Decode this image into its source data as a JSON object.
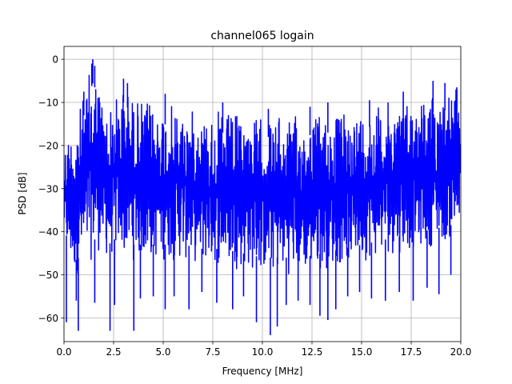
{
  "chart_data": {
    "type": "line",
    "title": "channel065 logain",
    "xlabel": "Frequency [MHz]",
    "ylabel": "PSD [dB]",
    "xlim": [
      0.0,
      20.0
    ],
    "ylim": [
      -65.5,
      3.0
    ],
    "x_ticks": [
      0.0,
      2.5,
      5.0,
      7.5,
      10.0,
      12.5,
      15.0,
      17.5,
      20.0
    ],
    "x_tick_labels": [
      "0.0",
      "2.5",
      "5.0",
      "7.5",
      "10.0",
      "12.5",
      "15.0",
      "17.5",
      "20.0"
    ],
    "y_ticks": [
      0,
      -10,
      -20,
      -30,
      -40,
      -50,
      -60
    ],
    "y_tick_labels": [
      "0",
      "−10",
      "−20",
      "−30",
      "−40",
      "−50",
      "−60"
    ],
    "grid": true,
    "legend": "none",
    "series": [
      {
        "color": "#0000ff",
        "envelope_x": [
          0.0,
          0.25,
          0.5,
          0.75,
          1.0,
          1.25,
          1.5,
          1.75,
          2.0,
          2.25,
          2.5,
          2.75,
          3.0,
          3.5,
          4.0,
          4.5,
          5.0,
          6.0,
          7.0,
          8.0,
          9.0,
          10.0,
          11.0,
          12.0,
          13.0,
          14.0,
          15.0,
          16.0,
          17.0,
          18.0,
          19.0,
          20.0
        ],
        "upper_db": [
          -19,
          -16,
          -14,
          -11,
          -8,
          -3,
          0,
          -4,
          -9,
          -11,
          -9,
          -7,
          -5,
          -8,
          -9,
          -10,
          -10,
          -11,
          -12,
          -12,
          -12.5,
          -13,
          -13,
          -13,
          -12,
          -12,
          -11,
          -10,
          -9,
          -8,
          -7,
          -6
        ],
        "lower_db": [
          -42,
          -48,
          -51,
          -50,
          -50,
          -48,
          -46,
          -45,
          -46,
          -47,
          -46,
          -45,
          -46,
          -47,
          -47,
          -47,
          -47,
          -47,
          -48,
          -48,
          -49,
          -50,
          -50,
          -50,
          -49,
          -48,
          -47,
          -46,
          -45,
          -44,
          -43,
          -42
        ],
        "dips": [
          {
            "x": 0.12,
            "y": -61.0
          },
          {
            "x": 0.62,
            "y": -56.0
          },
          {
            "x": 0.72,
            "y": -63.0
          },
          {
            "x": 1.55,
            "y": -56.5
          },
          {
            "x": 2.32,
            "y": -63.0
          },
          {
            "x": 2.55,
            "y": -57.0
          },
          {
            "x": 3.52,
            "y": -63.0
          },
          {
            "x": 3.85,
            "y": -55.5
          },
          {
            "x": 4.5,
            "y": -55.0
          },
          {
            "x": 5.1,
            "y": -58.0
          },
          {
            "x": 5.55,
            "y": -55.0
          },
          {
            "x": 6.3,
            "y": -58.0
          },
          {
            "x": 6.95,
            "y": -54.0
          },
          {
            "x": 7.7,
            "y": -56.5
          },
          {
            "x": 8.5,
            "y": -58.0
          },
          {
            "x": 9.05,
            "y": -55.0
          },
          {
            "x": 9.7,
            "y": -61.0
          },
          {
            "x": 10.4,
            "y": -64.0
          },
          {
            "x": 10.75,
            "y": -62.0
          },
          {
            "x": 11.2,
            "y": -57.0
          },
          {
            "x": 11.8,
            "y": -56.0
          },
          {
            "x": 12.4,
            "y": -57.0
          },
          {
            "x": 12.9,
            "y": -59.5
          },
          {
            "x": 13.3,
            "y": -60.5
          },
          {
            "x": 13.7,
            "y": -58.0
          },
          {
            "x": 14.3,
            "y": -55.0
          },
          {
            "x": 14.9,
            "y": -54.0
          },
          {
            "x": 15.5,
            "y": -55.5
          },
          {
            "x": 16.2,
            "y": -56.0
          },
          {
            "x": 16.9,
            "y": -54.0
          },
          {
            "x": 17.6,
            "y": -56.0
          },
          {
            "x": 18.3,
            "y": -53.0
          },
          {
            "x": 18.9,
            "y": -54.5
          },
          {
            "x": 19.5,
            "y": -50.0
          }
        ],
        "spikes": [
          {
            "x": 1.45,
            "y": 0.0
          },
          {
            "x": 1.4,
            "y": -1.0
          },
          {
            "x": 1.55,
            "y": -1.5
          },
          {
            "x": 1.0,
            "y": -7.5
          },
          {
            "x": 3.0,
            "y": -4.5
          },
          {
            "x": 3.2,
            "y": -5.5
          },
          {
            "x": 5.1,
            "y": -8.0
          },
          {
            "x": 8.0,
            "y": -10.0
          },
          {
            "x": 10.3,
            "y": -11.5
          },
          {
            "x": 12.4,
            "y": -11.0
          },
          {
            "x": 13.3,
            "y": -10.0
          },
          {
            "x": 15.4,
            "y": -9.5
          },
          {
            "x": 17.1,
            "y": -7.5
          },
          {
            "x": 18.6,
            "y": -5.0
          },
          {
            "x": 19.2,
            "y": -5.5
          },
          {
            "x": 19.8,
            "y": -6.5
          }
        ]
      }
    ]
  }
}
